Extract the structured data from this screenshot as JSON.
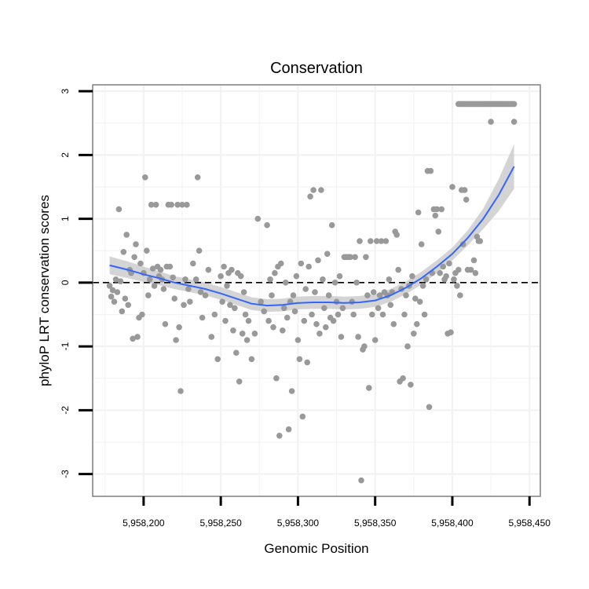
{
  "chart_data": {
    "type": "scatter",
    "title": "Conservation",
    "xlabel": "Genomic Position",
    "ylabel": "phyloP LRT conservation scores",
    "xlim": [
      5958167,
      5958457
    ],
    "ylim": [
      -3.35,
      3.1
    ],
    "x_ticks": [
      5958200,
      5958250,
      5958300,
      5958350,
      5958400,
      5958450
    ],
    "x_tick_labels": [
      "5,958,200",
      "5,958,250",
      "5,958,300",
      "5,958,350",
      "5,958,400",
      "5,958,450"
    ],
    "y_ticks": [
      -3,
      -2,
      -1,
      0,
      1,
      2,
      3
    ],
    "y_tick_labels": [
      "-3",
      "-2",
      "-1",
      "0",
      "1",
      "2",
      "3"
    ],
    "reference_line_y": 0,
    "grid": true,
    "colors": {
      "points": "#999999",
      "smooth_line": "#3366FF",
      "band": "#cccccc",
      "reference_line": "#000000",
      "grid": "#f2f2f2",
      "frame": "#7f7f7f"
    },
    "points": [
      [
        5958178,
        -0.05
      ],
      [
        5958179,
        -0.22
      ],
      [
        5958180,
        -0.12
      ],
      [
        5958181,
        -0.3
      ],
      [
        5958182,
        0.05
      ],
      [
        5958183,
        -0.15
      ],
      [
        5958184,
        1.15
      ],
      [
        5958185,
        0.02
      ],
      [
        5958186,
        -0.45
      ],
      [
        5958187,
        0.48
      ],
      [
        5958188,
        -0.25
      ],
      [
        5958189,
        0.75
      ],
      [
        5958190,
        -0.35
      ],
      [
        5958191,
        0.2
      ],
      [
        5958192,
        0.15
      ],
      [
        5958193,
        -0.88
      ],
      [
        5958194,
        0.4
      ],
      [
        5958195,
        0.6
      ],
      [
        5958196,
        -0.85
      ],
      [
        5958197,
        -0.55
      ],
      [
        5958198,
        0.3
      ],
      [
        5958199,
        -0.5
      ],
      [
        5958200,
        0.15
      ],
      [
        5958201,
        1.65
      ],
      [
        5958202,
        0.5
      ],
      [
        5958203,
        -0.2
      ],
      [
        5958204,
        0.05
      ],
      [
        5958205,
        1.22
      ],
      [
        5958206,
        0.22
      ],
      [
        5958207,
        -0.05
      ],
      [
        5958208,
        1.22
      ],
      [
        5958209,
        0.25
      ],
      [
        5958210,
        0.1
      ],
      [
        5958211,
        0.2
      ],
      [
        5958212,
        0.05
      ],
      [
        5958213,
        -0.1
      ],
      [
        5958214,
        -0.65
      ],
      [
        5958215,
        0.25
      ],
      [
        5958216,
        1.22
      ],
      [
        5958217,
        0.25
      ],
      [
        5958218,
        1.22
      ],
      [
        5958219,
        0.08
      ],
      [
        5958220,
        -0.25
      ],
      [
        5958221,
        -0.9
      ],
      [
        5958222,
        1.22
      ],
      [
        5958223,
        -0.7
      ],
      [
        5958224,
        -1.7
      ],
      [
        5958225,
        1.22
      ],
      [
        5958226,
        -0.35
      ],
      [
        5958227,
        0.05
      ],
      [
        5958228,
        1.22
      ],
      [
        5958229,
        -0.1
      ],
      [
        5958230,
        -0.3
      ],
      [
        5958232,
        0.3
      ],
      [
        5958234,
        0.05
      ],
      [
        5958235,
        1.65
      ],
      [
        5958236,
        0.5
      ],
      [
        5958237,
        -0.15
      ],
      [
        5958238,
        -0.55
      ],
      [
        5958240,
        -0.2
      ],
      [
        5958242,
        0.2
      ],
      [
        5958244,
        -0.85
      ],
      [
        5958246,
        -0.5
      ],
      [
        5958248,
        -1.2
      ],
      [
        5958250,
        0.1
      ],
      [
        5958251,
        -0.3
      ],
      [
        5958252,
        0.25
      ],
      [
        5958253,
        -0.6
      ],
      [
        5958254,
        -0.05
      ],
      [
        5958255,
        0.15
      ],
      [
        5958256,
        -0.35
      ],
      [
        5958257,
        0.2
      ],
      [
        5958258,
        -0.75
      ],
      [
        5958259,
        -0.4
      ],
      [
        5958260,
        -1.1
      ],
      [
        5958261,
        0.15
      ],
      [
        5958262,
        -1.55
      ],
      [
        5958263,
        0.1
      ],
      [
        5958264,
        -0.8
      ],
      [
        5958265,
        -0.15
      ],
      [
        5958266,
        -0.5
      ],
      [
        5958267,
        -0.9
      ],
      [
        5958268,
        -0.6
      ],
      [
        5958270,
        -1.2
      ],
      [
        5958272,
        -0.8
      ],
      [
        5958274,
        1.0
      ],
      [
        5958276,
        -0.3
      ],
      [
        5958278,
        -0.45
      ],
      [
        5958280,
        0.9
      ],
      [
        5958281,
        -0.6
      ],
      [
        5958282,
        0.05
      ],
      [
        5958283,
        -0.2
      ],
      [
        5958284,
        -0.7
      ],
      [
        5958285,
        0.15
      ],
      [
        5958286,
        -1.5
      ],
      [
        5958287,
        0.25
      ],
      [
        5958288,
        -2.4
      ],
      [
        5958289,
        0.3
      ],
      [
        5958290,
        -0.75
      ],
      [
        5958291,
        -0.4
      ],
      [
        5958292,
        0.0
      ],
      [
        5958293,
        -0.55
      ],
      [
        5958294,
        -2.3
      ],
      [
        5958295,
        -0.3
      ],
      [
        5958296,
        -1.7
      ],
      [
        5958297,
        -0.2
      ],
      [
        5958298,
        -0.45
      ],
      [
        5958299,
        0.1
      ],
      [
        5958300,
        -0.9
      ],
      [
        5958301,
        -1.2
      ],
      [
        5958302,
        0.3
      ],
      [
        5958303,
        -2.1
      ],
      [
        5958304,
        -0.6
      ],
      [
        5958305,
        -0.1
      ],
      [
        5958306,
        -1.25
      ],
      [
        5958307,
        0.25
      ],
      [
        5958308,
        1.35
      ],
      [
        5958309,
        -0.5
      ],
      [
        5958310,
        1.45
      ],
      [
        5958311,
        -0.15
      ],
      [
        5958312,
        -0.65
      ],
      [
        5958313,
        0.35
      ],
      [
        5958314,
        -0.8
      ],
      [
        5958315,
        1.45
      ],
      [
        5958316,
        0.05
      ],
      [
        5958317,
        -0.4
      ],
      [
        5958318,
        -0.7
      ],
      [
        5958319,
        0.45
      ],
      [
        5958320,
        -0.2
      ],
      [
        5958321,
        -0.55
      ],
      [
        5958322,
        0.9
      ],
      [
        5958323,
        -0.6
      ],
      [
        5958324,
        0.0
      ],
      [
        5958325,
        -0.3
      ],
      [
        5958326,
        -0.5
      ],
      [
        5958327,
        0.1
      ],
      [
        5958328,
        -0.85
      ],
      [
        5958329,
        -0.4
      ],
      [
        5958330,
        0.4
      ],
      [
        5958331,
        0.4
      ],
      [
        5958332,
        0.4
      ],
      [
        5958333,
        0.4
      ],
      [
        5958334,
        0.4
      ],
      [
        5958335,
        -0.3
      ],
      [
        5958336,
        -0.5
      ],
      [
        5958337,
        0.4
      ],
      [
        5958338,
        0.0
      ],
      [
        5958339,
        -0.85
      ],
      [
        5958340,
        0.65
      ],
      [
        5958341,
        -3.1
      ],
      [
        5958342,
        -1.05
      ],
      [
        5958343,
        -1.0
      ],
      [
        5958344,
        0.4
      ],
      [
        5958345,
        -0.2
      ],
      [
        5958346,
        -1.65
      ],
      [
        5958347,
        0.65
      ],
      [
        5958348,
        -0.5
      ],
      [
        5958349,
        -0.15
      ],
      [
        5958350,
        -0.9
      ],
      [
        5958351,
        0.65
      ],
      [
        5958352,
        -0.4
      ],
      [
        5958353,
        -0.2
      ],
      [
        5958354,
        0.65
      ],
      [
        5958355,
        -0.5
      ],
      [
        5958356,
        -0.15
      ],
      [
        5958357,
        0.65
      ],
      [
        5958358,
        -0.2
      ],
      [
        5958359,
        0.05
      ],
      [
        5958360,
        -0.35
      ],
      [
        5958361,
        -0.15
      ],
      [
        5958362,
        -0.65
      ],
      [
        5958363,
        0.8
      ],
      [
        5958364,
        0.75
      ],
      [
        5958365,
        0.2
      ],
      [
        5958366,
        -1.55
      ],
      [
        5958367,
        -0.1
      ],
      [
        5958368,
        -1.5
      ],
      [
        5958369,
        -0.5
      ],
      [
        5958370,
        -0.2
      ],
      [
        5958371,
        -1.0
      ],
      [
        5958372,
        -0.05
      ],
      [
        5958373,
        -1.6
      ],
      [
        5958374,
        0.1
      ],
      [
        5958375,
        -0.8
      ],
      [
        5958376,
        -0.25
      ],
      [
        5958377,
        -0.65
      ],
      [
        5958378,
        1.1
      ],
      [
        5958379,
        -0.3
      ],
      [
        5958380,
        0.6
      ],
      [
        5958381,
        -0.05
      ],
      [
        5958382,
        -0.5
      ],
      [
        5958383,
        0.05
      ],
      [
        5958384,
        1.75
      ],
      [
        5958385,
        -1.95
      ],
      [
        5958386,
        1.75
      ],
      [
        5958387,
        0.15
      ],
      [
        5958388,
        1.15
      ],
      [
        5958389,
        1.05
      ],
      [
        5958390,
        1.15
      ],
      [
        5958391,
        0.8
      ],
      [
        5958392,
        0.15
      ],
      [
        5958393,
        1.15
      ],
      [
        5958394,
        0.25
      ],
      [
        5958395,
        0.05
      ],
      [
        5958396,
        0.1
      ],
      [
        5958397,
        -0.8
      ],
      [
        5958398,
        0.3
      ],
      [
        5958399,
        -0.78
      ],
      [
        5958400,
        1.5
      ],
      [
        5958401,
        0.05
      ],
      [
        5958402,
        0.15
      ],
      [
        5958403,
        -0.05
      ],
      [
        5958404,
        0.2
      ],
      [
        5958405,
        -0.2
      ],
      [
        5958406,
        1.45
      ],
      [
        5958407,
        0.6
      ],
      [
        5958408,
        1.45
      ],
      [
        5958409,
        1.3
      ],
      [
        5958410,
        0.2
      ],
      [
        5958412,
        0.2
      ],
      [
        5958414,
        0.35
      ],
      [
        5958415,
        0.15
      ],
      [
        5958416,
        0.72
      ],
      [
        5958417,
        0.65
      ],
      [
        5958418,
        0.65
      ],
      [
        5958404,
        2.8
      ],
      [
        5958405,
        2.8
      ],
      [
        5958406,
        2.8
      ],
      [
        5958407,
        2.8
      ],
      [
        5958408,
        2.8
      ],
      [
        5958409,
        2.8
      ],
      [
        5958410,
        2.8
      ],
      [
        5958411,
        2.8
      ],
      [
        5958412,
        2.8
      ],
      [
        5958413,
        2.8
      ],
      [
        5958414,
        2.8
      ],
      [
        5958415,
        2.8
      ],
      [
        5958416,
        2.8
      ],
      [
        5958417,
        2.8
      ],
      [
        5958418,
        2.8
      ],
      [
        5958419,
        2.8
      ],
      [
        5958420,
        2.8
      ],
      [
        5958421,
        2.8
      ],
      [
        5958422,
        2.8
      ],
      [
        5958423,
        2.8
      ],
      [
        5958424,
        2.8
      ],
      [
        5958425,
        2.8
      ],
      [
        5958426,
        2.8
      ],
      [
        5958427,
        2.8
      ],
      [
        5958428,
        2.8
      ],
      [
        5958429,
        2.8
      ],
      [
        5958430,
        2.8
      ],
      [
        5958431,
        2.8
      ],
      [
        5958432,
        2.8
      ],
      [
        5958433,
        2.8
      ],
      [
        5958434,
        2.8
      ],
      [
        5958435,
        2.8
      ],
      [
        5958436,
        2.8
      ],
      [
        5958437,
        2.8
      ],
      [
        5958438,
        2.8
      ],
      [
        5958439,
        2.8
      ],
      [
        5958440,
        2.8
      ],
      [
        5958425,
        2.52
      ],
      [
        5958440,
        2.52
      ]
    ],
    "smooth": {
      "x": [
        5958178,
        5958190,
        5958200,
        5958210,
        5958220,
        5958230,
        5958240,
        5958250,
        5958260,
        5958270,
        5958280,
        5958290,
        5958300,
        5958310,
        5958320,
        5958330,
        5958340,
        5958350,
        5958360,
        5958370,
        5958380,
        5958390,
        5958400,
        5958410,
        5958420,
        5958430,
        5958440
      ],
      "y": [
        0.27,
        0.2,
        0.13,
        0.07,
        0.0,
        -0.05,
        -0.1,
        -0.17,
        -0.25,
        -0.33,
        -0.36,
        -0.35,
        -0.32,
        -0.31,
        -0.31,
        -0.32,
        -0.31,
        -0.28,
        -0.2,
        -0.08,
        0.07,
        0.25,
        0.45,
        0.7,
        1.0,
        1.37,
        1.82
      ],
      "band_half_width": [
        0.14,
        0.13,
        0.12,
        0.11,
        0.1,
        0.1,
        0.1,
        0.1,
        0.1,
        0.1,
        0.1,
        0.1,
        0.1,
        0.1,
        0.1,
        0.1,
        0.1,
        0.1,
        0.1,
        0.1,
        0.1,
        0.1,
        0.1,
        0.12,
        0.16,
        0.25,
        0.35
      ]
    }
  }
}
